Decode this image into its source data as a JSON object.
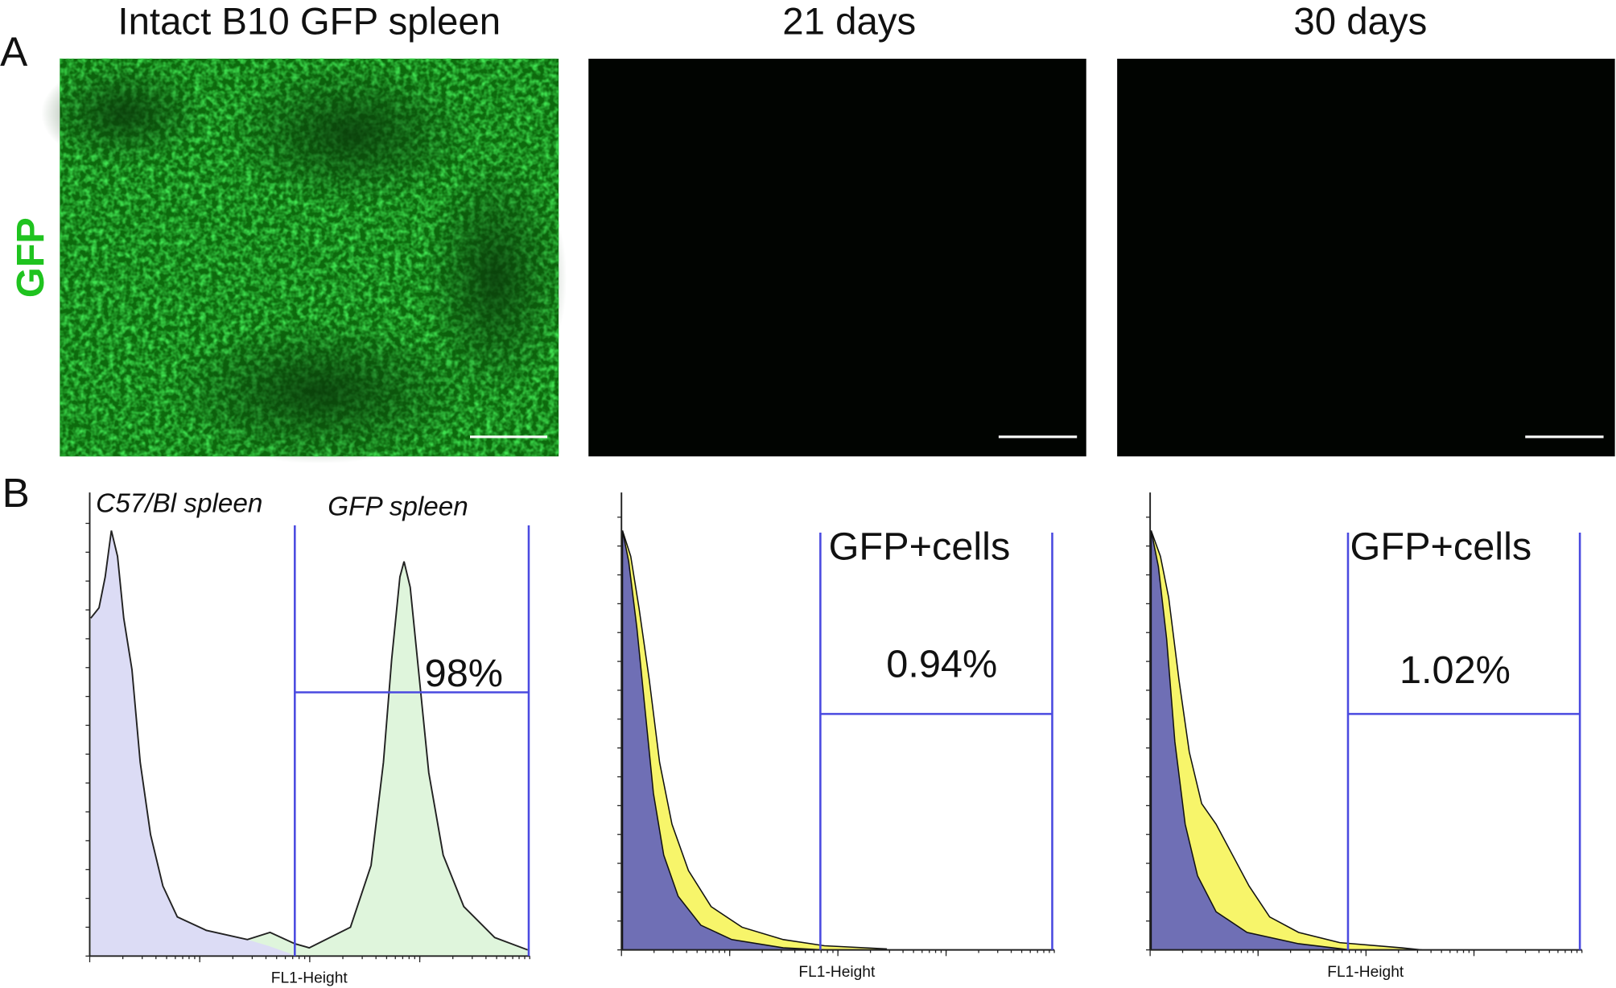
{
  "panel_a": {
    "label": "A",
    "row_label": "GFP",
    "images": [
      {
        "title": "Intact B10 GFP spleen"
      },
      {
        "title": "21 days"
      },
      {
        "title": "30 days"
      }
    ]
  },
  "panel_b": {
    "label": "B",
    "histograms": [
      {
        "legend": [
          "C57/Bl spleen",
          "GFP spleen"
        ],
        "gate_value": "98%",
        "x_label": "FL1-Height"
      },
      {
        "gate_label": "GFP+cells",
        "gate_value": "0.94%",
        "x_label": "FL1-Height"
      },
      {
        "gate_label": "GFP+cells",
        "gate_value": "1.02%",
        "x_label": "FL1-Height"
      }
    ]
  }
}
